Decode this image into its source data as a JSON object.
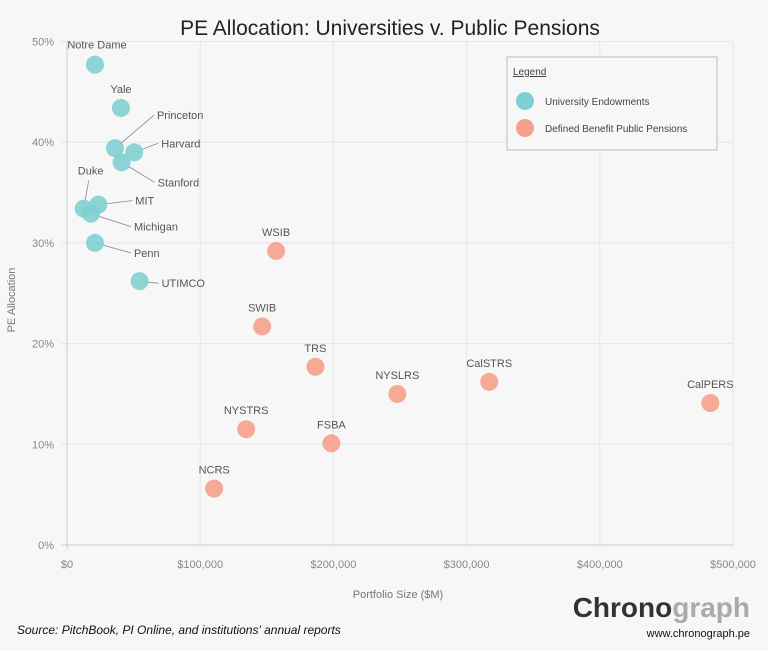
{
  "chart_data": {
    "type": "scatter",
    "title": "PE Allocation: Universities v. Public Pensions",
    "xlabel": "Portfolio Size ($M)",
    "ylabel": "PE Allocation",
    "xlim": [
      0,
      500000
    ],
    "ylim": [
      0,
      50
    ],
    "x_ticks": [
      "$0",
      "$100,000",
      "$200,000",
      "$300,000",
      "$400,000",
      "$500,000"
    ],
    "y_ticks": [
      "0%",
      "10%",
      "20%",
      "30%",
      "40%",
      "50%"
    ],
    "grid": true,
    "legend": {
      "title": "Legend",
      "placement": "top-right"
    },
    "series": [
      {
        "name": "University Endowments",
        "color": "#7fcfd0",
        "points": [
          {
            "label": "Notre Dame",
            "x": 21000,
            "y": 47.7
          },
          {
            "label": "Yale",
            "x": 40500,
            "y": 43.4
          },
          {
            "label": "Princeton",
            "x": 36000,
            "y": 39.4
          },
          {
            "label": "Harvard",
            "x": 50500,
            "y": 39.0
          },
          {
            "label": "Stanford",
            "x": 41000,
            "y": 38.0
          },
          {
            "label": "Duke",
            "x": 12500,
            "y": 33.4
          },
          {
            "label": "MIT",
            "x": 23500,
            "y": 33.8
          },
          {
            "label": "Michigan",
            "x": 18000,
            "y": 32.9
          },
          {
            "label": "Penn",
            "x": 21000,
            "y": 30.0
          },
          {
            "label": "UTIMCO",
            "x": 54500,
            "y": 26.2
          }
        ]
      },
      {
        "name": "Defined Benefit Public Pensions",
        "color": "#f5a08c",
        "points": [
          {
            "label": "WSIB",
            "x": 157000,
            "y": 29.2
          },
          {
            "label": "SWIB",
            "x": 146500,
            "y": 21.7
          },
          {
            "label": "TRS",
            "x": 186500,
            "y": 17.7
          },
          {
            "label": "NYSLRS",
            "x": 248000,
            "y": 15.0
          },
          {
            "label": "CalSTRS",
            "x": 317000,
            "y": 16.2
          },
          {
            "label": "CalPERS",
            "x": 483000,
            "y": 14.1
          },
          {
            "label": "NYSTRS",
            "x": 134500,
            "y": 11.5
          },
          {
            "label": "FSBA",
            "x": 198500,
            "y": 10.1
          },
          {
            "label": "NCRS",
            "x": 110500,
            "y": 5.6
          }
        ]
      }
    ]
  },
  "footer": {
    "source": "Source: PitchBook, PI Online, and institutions' annual reports",
    "logo_dark": "Chrono",
    "logo_light": "graph",
    "url": "www.chronograph.pe"
  }
}
